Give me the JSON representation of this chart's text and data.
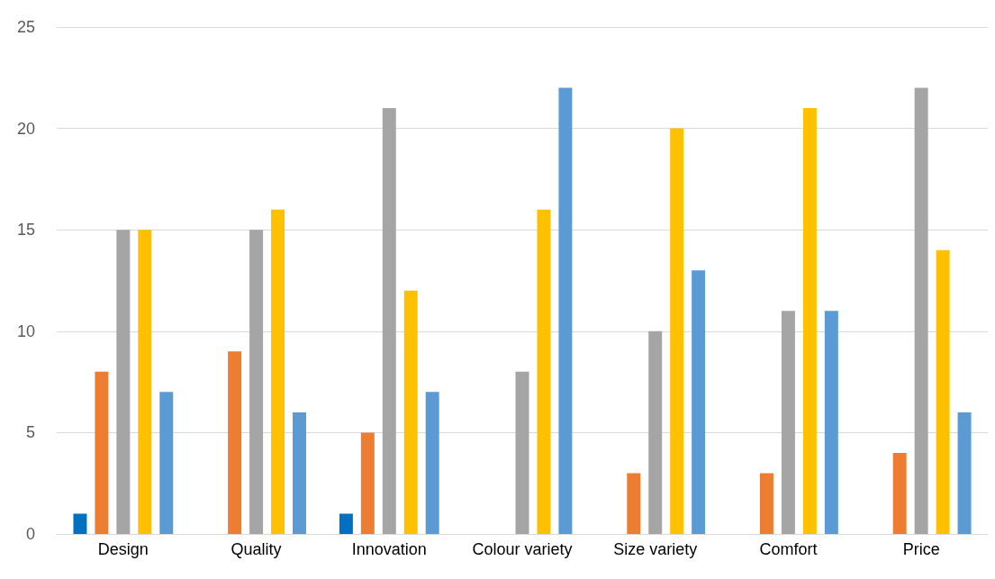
{
  "chart_data": {
    "type": "bar",
    "categories": [
      "Design",
      "Quality",
      "Innovation",
      "Colour variety",
      "Size variety",
      "Comfort",
      "Price"
    ],
    "series": [
      {
        "color": "#0070c0",
        "values": [
          1,
          0,
          1,
          0,
          0,
          0,
          0
        ]
      },
      {
        "color": "#ed7d31",
        "values": [
          8,
          9,
          5,
          0,
          3,
          3,
          4
        ]
      },
      {
        "color": "#a5a5a5",
        "values": [
          15,
          15,
          21,
          8,
          10,
          11,
          22
        ]
      },
      {
        "color": "#ffc000",
        "values": [
          15,
          16,
          12,
          16,
          20,
          21,
          14
        ]
      },
      {
        "color": "#5b9bd5",
        "values": [
          7,
          6,
          7,
          22,
          13,
          11,
          6
        ]
      }
    ],
    "ylim": [
      0,
      25
    ],
    "yticks": [
      0,
      5,
      10,
      15,
      20,
      25
    ],
    "grid": "y"
  }
}
